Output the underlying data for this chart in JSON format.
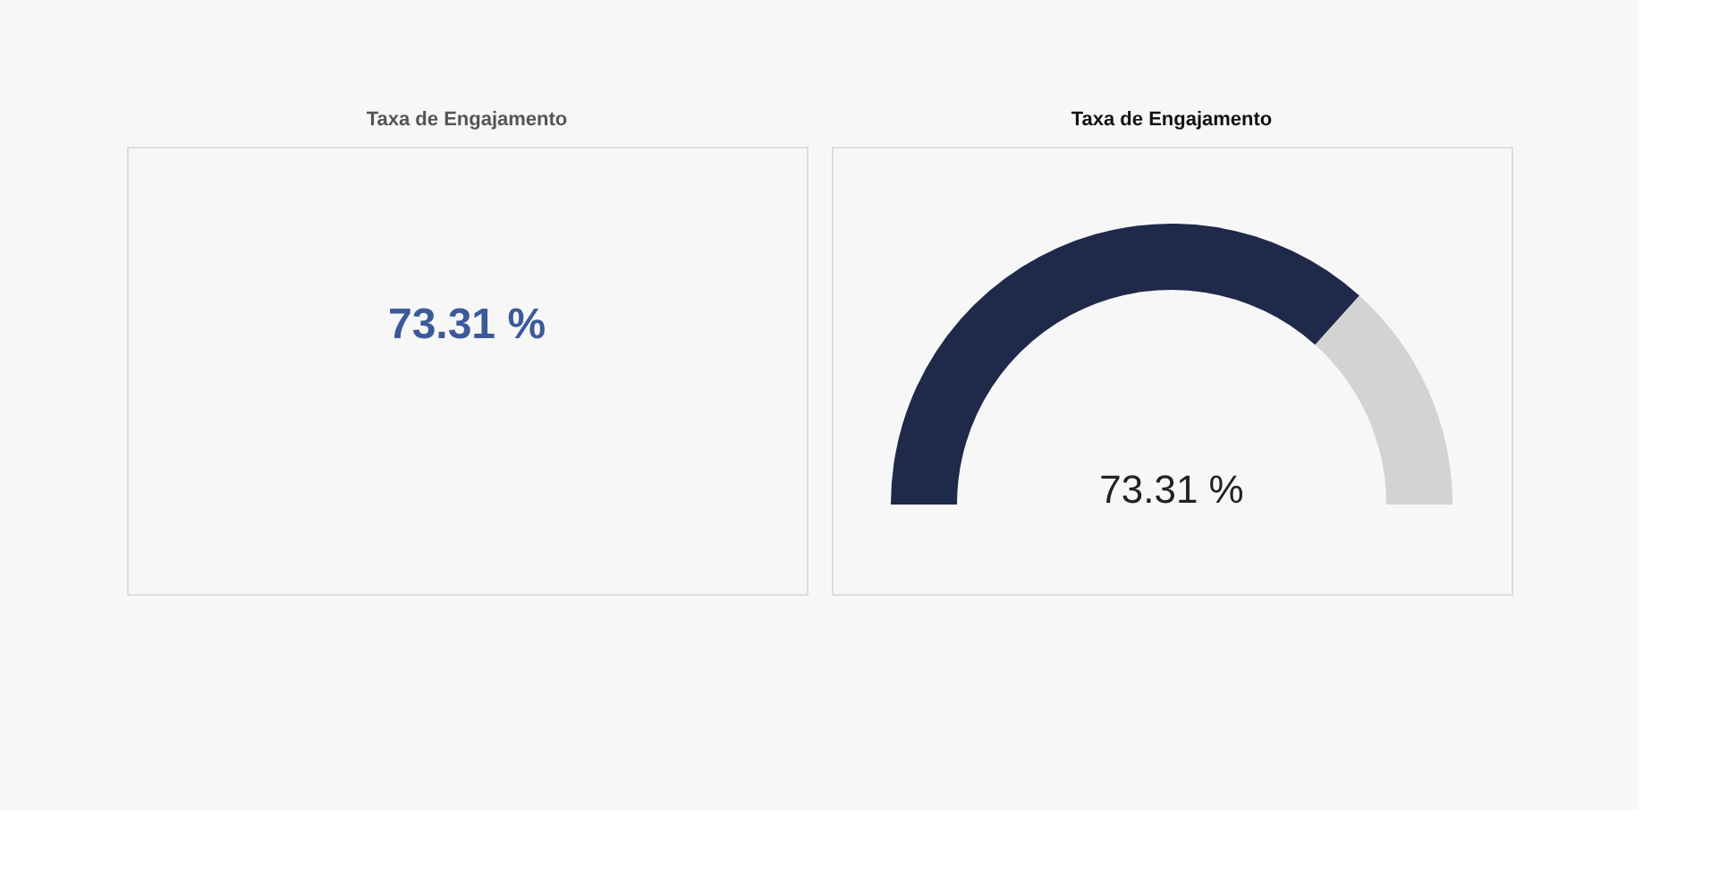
{
  "chart_data": [
    {
      "type": "other",
      "title": "Taxa de Engajamento",
      "annotations": [
        "73.31 %"
      ]
    },
    {
      "type": "donut",
      "title": "Taxa de Engajamento",
      "categories": [
        null,
        null
      ],
      "values": [
        73.31,
        26.69
      ],
      "colors": [
        "#1f2a4a",
        "#d3d3d3"
      ],
      "value_labels": [
        "73.31 %",
        null
      ]
    }
  ]
}
